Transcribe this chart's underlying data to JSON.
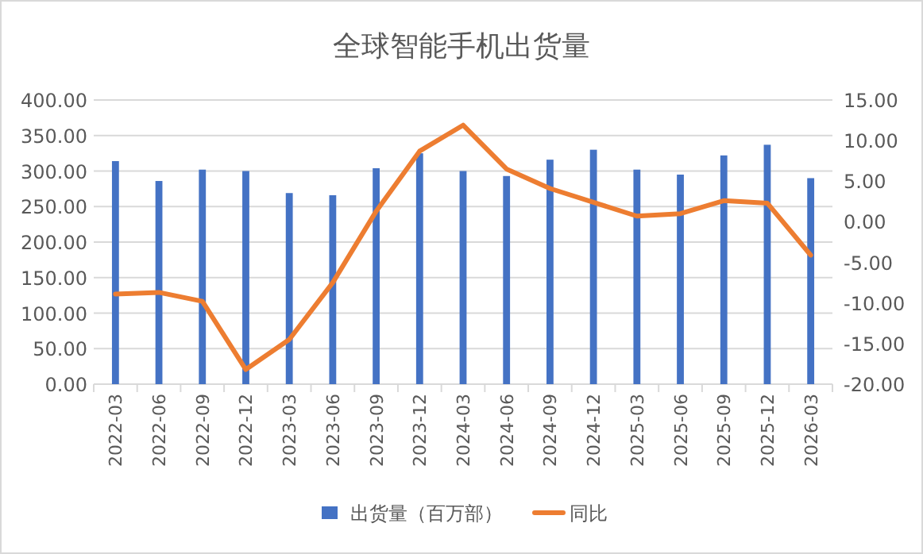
{
  "chart_data": {
    "type": "bar",
    "title": "全球智能手机出货量",
    "categories": [
      "2022-03",
      "2022-06",
      "2022-09",
      "2022-12",
      "2023-03",
      "2023-06",
      "2023-09",
      "2023-12",
      "2024-03",
      "2024-06",
      "2024-09",
      "2024-12",
      "2025-03",
      "2025-06",
      "2025-09",
      "2025-12",
      "2026-03"
    ],
    "series": [
      {
        "name": "出货量（百万部）",
        "color": "#4472c4",
        "values": [
          314,
          286,
          302,
          300,
          269,
          266,
          304,
          325,
          300,
          293,
          316,
          330,
          302,
          295,
          322,
          337,
          290
        ]
      },
      {
        "name": "同比",
        "type": "line",
        "axis": "y2",
        "color": "#ed7d31",
        "values": [
          -8.9,
          -8.7,
          -9.8,
          -18.2,
          -14.5,
          -7.5,
          1.3,
          8.7,
          11.9,
          6.5,
          4.1,
          2.4,
          0.7,
          1.0,
          2.6,
          2.3,
          -4.1
        ]
      }
    ],
    "ylim": [
      0,
      400
    ],
    "yticks": [
      {
        "value": 0,
        "label": "0.00"
      },
      {
        "value": 50,
        "label": "50.00"
      },
      {
        "value": 100,
        "label": "100.00"
      },
      {
        "value": 150,
        "label": "150.00"
      },
      {
        "value": 200,
        "label": "200.00"
      },
      {
        "value": 250,
        "label": "250.00"
      },
      {
        "value": 300,
        "label": "300.00"
      },
      {
        "value": 350,
        "label": "350.00"
      },
      {
        "value": 400,
        "label": "400.00"
      }
    ],
    "y2lim": [
      -20,
      15
    ],
    "y2ticks": [
      {
        "value": -20,
        "label": "-20.00"
      },
      {
        "value": -15,
        "label": "-15.00"
      },
      {
        "value": -10,
        "label": "-10.00"
      },
      {
        "value": -5,
        "label": "-5.00"
      },
      {
        "value": 0,
        "label": "0.00"
      },
      {
        "value": 5,
        "label": "5.00"
      },
      {
        "value": 10,
        "label": "10.00"
      },
      {
        "value": 15,
        "label": "15.00"
      }
    ],
    "grid": "y",
    "legend": "bottom"
  }
}
